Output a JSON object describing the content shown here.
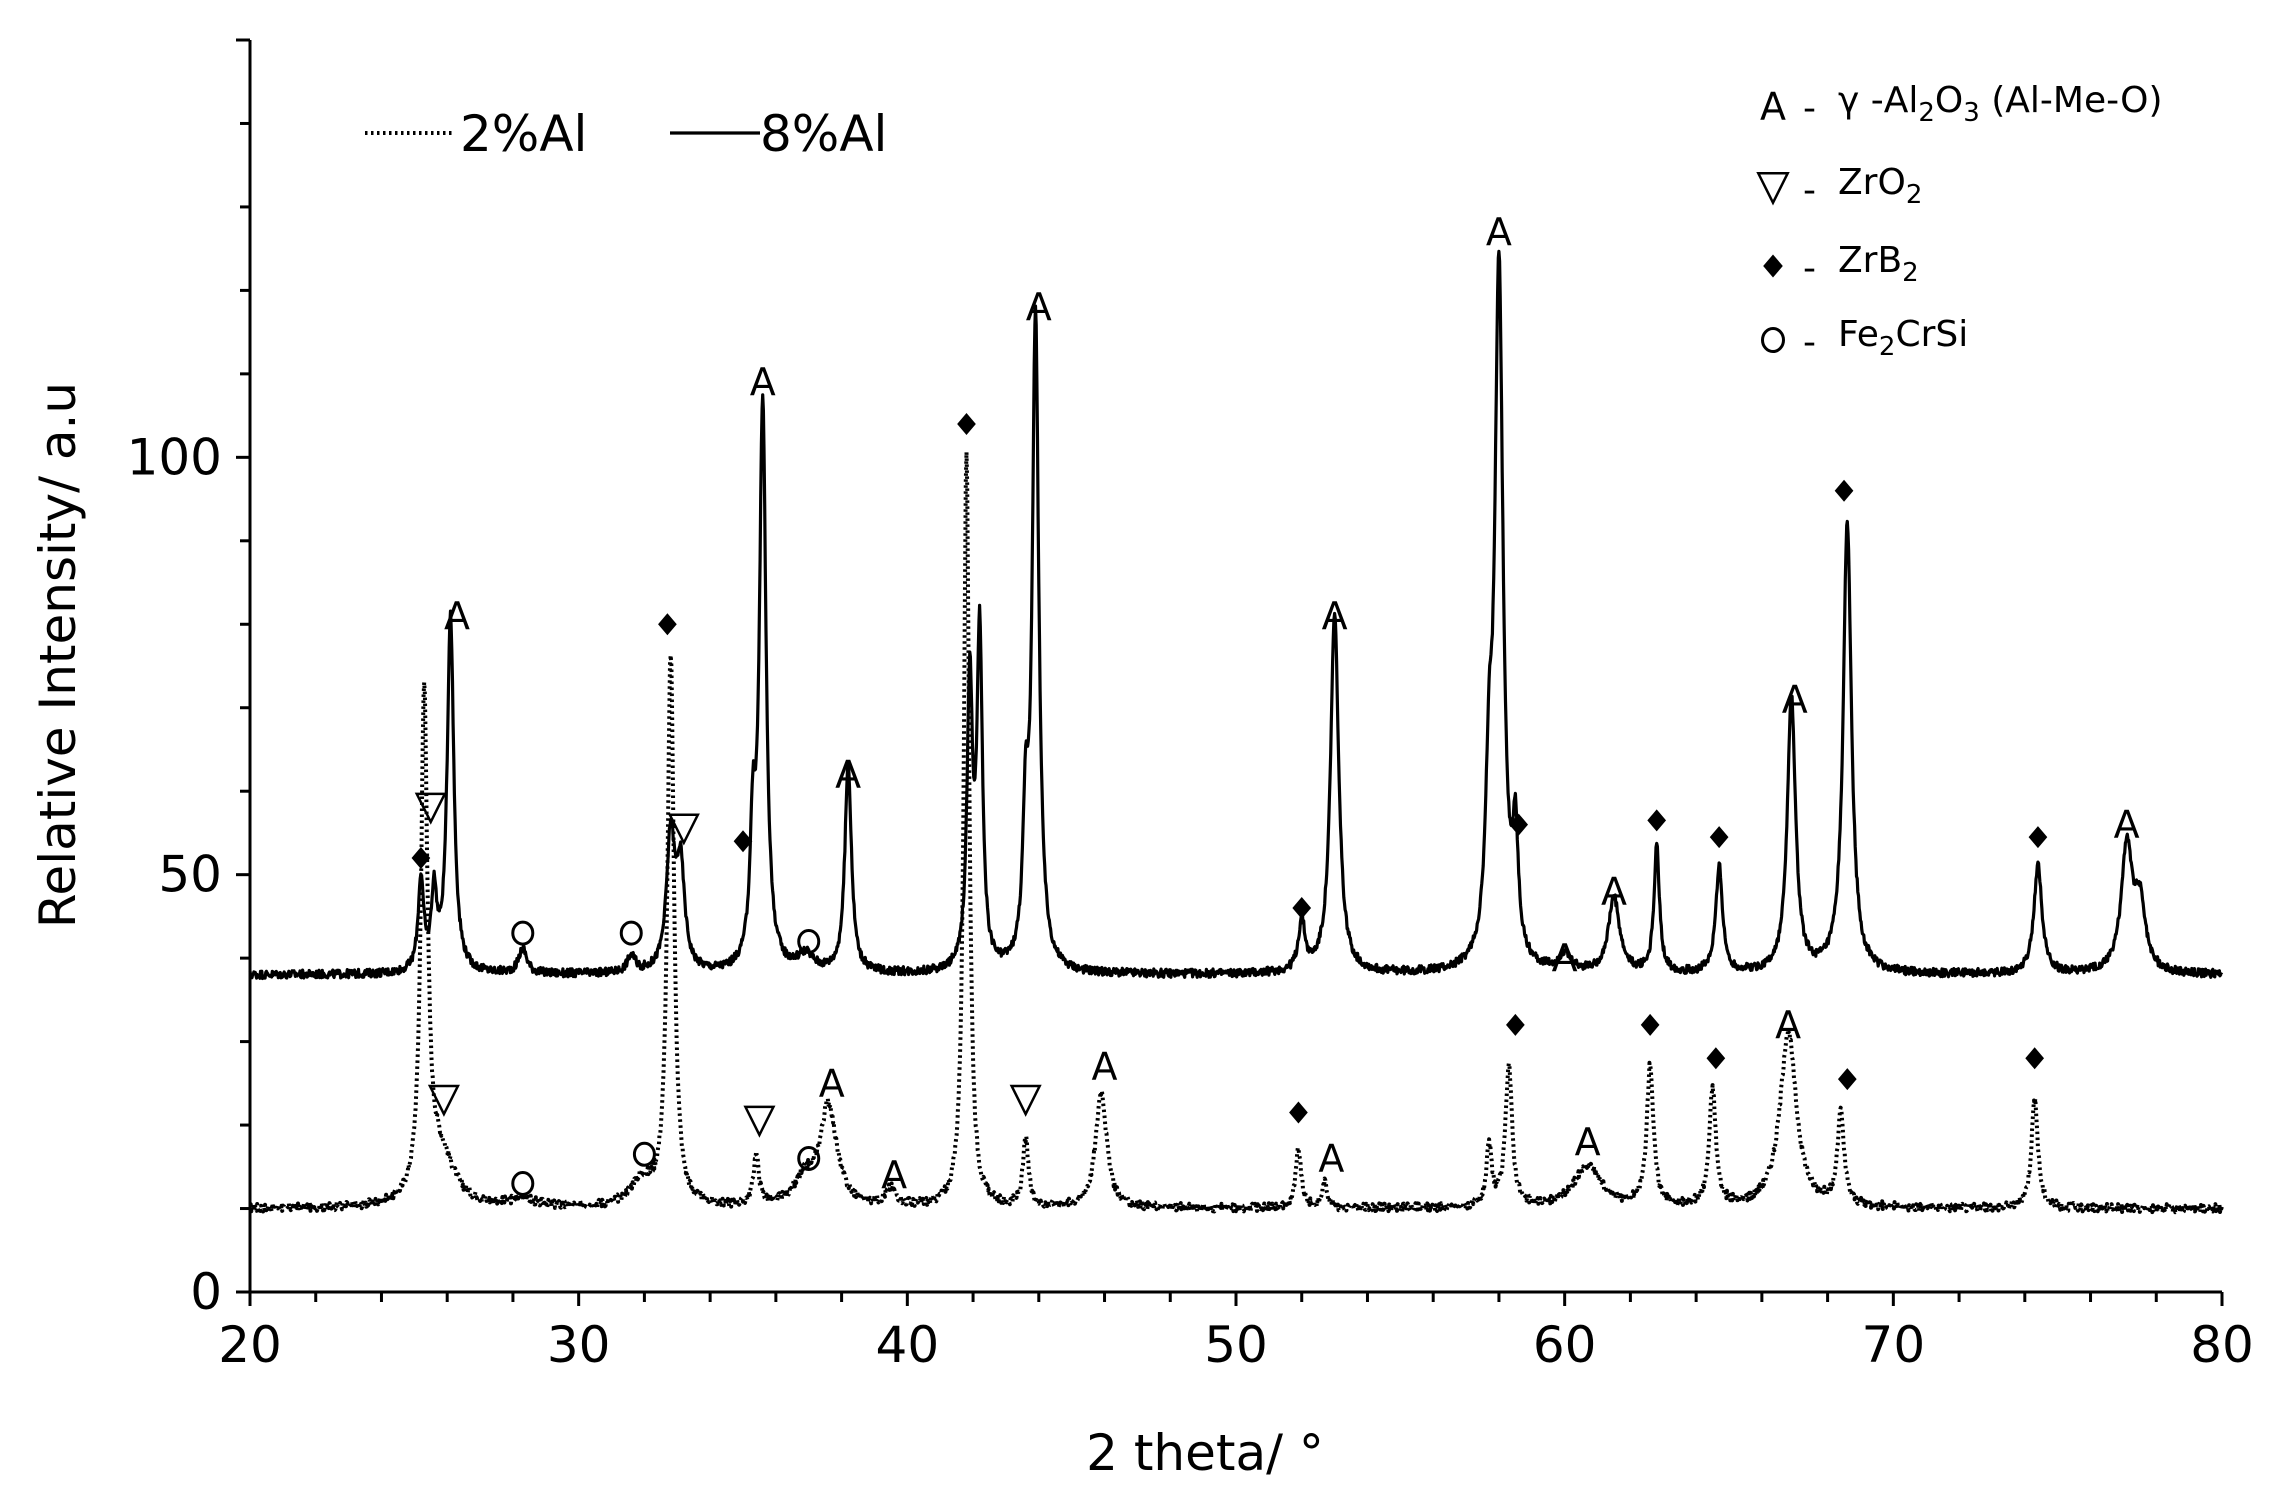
{
  "chart_data": {
    "type": "line",
    "xlabel": "2  theta/ °",
    "ylabel": "Relative Intensity/ a.u",
    "xlim": [
      20,
      80
    ],
    "ylim": [
      0,
      150
    ],
    "x_ticks": [
      20,
      30,
      40,
      50,
      60,
      70,
      80
    ],
    "y_ticks": [
      0,
      50,
      100
    ],
    "grid": false,
    "legend": {
      "placement": "top-left"
    },
    "series": [
      {
        "name": "2%Al",
        "style": "dotted",
        "baseline": 10,
        "peaks": [
          {
            "x": 25.3,
            "y": 60,
            "w": 0.12
          },
          {
            "x": 25.8,
            "y": 6,
            "w": 0.5
          },
          {
            "x": 28.3,
            "y": 1,
            "w": 0.4
          },
          {
            "x": 31.9,
            "y": 3,
            "w": 0.4
          },
          {
            "x": 32.8,
            "y": 66,
            "w": 0.12
          },
          {
            "x": 35.4,
            "y": 6,
            "w": 0.1
          },
          {
            "x": 36.9,
            "y": 3,
            "w": 0.4
          },
          {
            "x": 37.6,
            "y": 12,
            "w": 0.3
          },
          {
            "x": 39.5,
            "y": 2,
            "w": 0.2
          },
          {
            "x": 41.8,
            "y": 90,
            "w": 0.1
          },
          {
            "x": 43.6,
            "y": 8,
            "w": 0.1
          },
          {
            "x": 45.9,
            "y": 14,
            "w": 0.2
          },
          {
            "x": 51.9,
            "y": 7,
            "w": 0.1
          },
          {
            "x": 52.7,
            "y": 3,
            "w": 0.1
          },
          {
            "x": 57.7,
            "y": 7,
            "w": 0.1
          },
          {
            "x": 58.3,
            "y": 17,
            "w": 0.12
          },
          {
            "x": 60.7,
            "y": 5,
            "w": 0.5
          },
          {
            "x": 62.6,
            "y": 17,
            "w": 0.12
          },
          {
            "x": 64.5,
            "y": 14,
            "w": 0.12
          },
          {
            "x": 66.8,
            "y": 21,
            "w": 0.3
          },
          {
            "x": 68.4,
            "y": 11,
            "w": 0.12
          },
          {
            "x": 74.3,
            "y": 13,
            "w": 0.12
          }
        ]
      },
      {
        "name": "8%Al",
        "style": "solid",
        "baseline": 38,
        "peaks": [
          {
            "x": 25.2,
            "y": 11,
            "w": 0.1
          },
          {
            "x": 25.6,
            "y": 9,
            "w": 0.1
          },
          {
            "x": 26.1,
            "y": 43,
            "w": 0.12
          },
          {
            "x": 28.3,
            "y": 3,
            "w": 0.15
          },
          {
            "x": 31.6,
            "y": 2,
            "w": 0.15
          },
          {
            "x": 32.8,
            "y": 16,
            "w": 0.15
          },
          {
            "x": 33.1,
            "y": 12,
            "w": 0.15
          },
          {
            "x": 35.3,
            "y": 15,
            "w": 0.1
          },
          {
            "x": 35.6,
            "y": 68,
            "w": 0.12
          },
          {
            "x": 36.9,
            "y": 2,
            "w": 0.3
          },
          {
            "x": 38.2,
            "y": 25,
            "w": 0.12
          },
          {
            "x": 41.9,
            "y": 34,
            "w": 0.1
          },
          {
            "x": 42.2,
            "y": 40,
            "w": 0.1
          },
          {
            "x": 43.6,
            "y": 16,
            "w": 0.1
          },
          {
            "x": 43.9,
            "y": 78,
            "w": 0.12
          },
          {
            "x": 52.0,
            "y": 6,
            "w": 0.12
          },
          {
            "x": 53.0,
            "y": 43,
            "w": 0.15
          },
          {
            "x": 57.7,
            "y": 18,
            "w": 0.12
          },
          {
            "x": 58.0,
            "y": 84,
            "w": 0.15
          },
          {
            "x": 58.5,
            "y": 14,
            "w": 0.1
          },
          {
            "x": 60.0,
            "y": 2,
            "w": 0.2
          },
          {
            "x": 61.5,
            "y": 9,
            "w": 0.2
          },
          {
            "x": 62.8,
            "y": 15,
            "w": 0.1
          },
          {
            "x": 64.7,
            "y": 13,
            "w": 0.12
          },
          {
            "x": 66.9,
            "y": 33,
            "w": 0.15
          },
          {
            "x": 68.6,
            "y": 54,
            "w": 0.15
          },
          {
            "x": 74.4,
            "y": 13,
            "w": 0.15
          },
          {
            "x": 77.1,
            "y": 15,
            "w": 0.2
          },
          {
            "x": 77.5,
            "y": 8,
            "w": 0.2
          }
        ]
      }
    ],
    "annotations": [
      {
        "symbol": "A",
        "x": 26.3,
        "y": 81
      },
      {
        "symbol": "A",
        "x": 35.6,
        "y": 109
      },
      {
        "symbol": "A",
        "x": 38.2,
        "y": 62
      },
      {
        "symbol": "A",
        "x": 44.0,
        "y": 118
      },
      {
        "symbol": "A",
        "x": 53.0,
        "y": 81
      },
      {
        "symbol": "A",
        "x": 58.0,
        "y": 127
      },
      {
        "symbol": "A",
        "x": 60.0,
        "y": 40
      },
      {
        "symbol": "A",
        "x": 61.5,
        "y": 48
      },
      {
        "symbol": "A",
        "x": 67.0,
        "y": 71
      },
      {
        "symbol": "A",
        "x": 77.1,
        "y": 56
      },
      {
        "symbol": "A",
        "x": 37.7,
        "y": 25
      },
      {
        "symbol": "A",
        "x": 39.6,
        "y": 14
      },
      {
        "symbol": "A",
        "x": 46.0,
        "y": 27
      },
      {
        "symbol": "A",
        "x": 52.9,
        "y": 16
      },
      {
        "symbol": "A",
        "x": 60.7,
        "y": 18
      },
      {
        "symbol": "A",
        "x": 66.8,
        "y": 32
      },
      {
        "symbol": "triangle",
        "x": 25.5,
        "y": 58
      },
      {
        "symbol": "triangle",
        "x": 33.2,
        "y": 55.5
      },
      {
        "symbol": "triangle",
        "x": 25.9,
        "y": 23
      },
      {
        "symbol": "triangle",
        "x": 35.5,
        "y": 20.5
      },
      {
        "symbol": "triangle",
        "x": 43.6,
        "y": 23
      },
      {
        "symbol": "diamond",
        "x": 25.2,
        "y": 52
      },
      {
        "symbol": "diamond",
        "x": 32.7,
        "y": 80
      },
      {
        "symbol": "diamond",
        "x": 35.0,
        "y": 54
      },
      {
        "symbol": "diamond",
        "x": 41.8,
        "y": 104
      },
      {
        "symbol": "diamond",
        "x": 52.0,
        "y": 46
      },
      {
        "symbol": "diamond",
        "x": 58.6,
        "y": 56
      },
      {
        "symbol": "diamond",
        "x": 62.8,
        "y": 56.5
      },
      {
        "symbol": "diamond",
        "x": 64.7,
        "y": 54.5
      },
      {
        "symbol": "diamond",
        "x": 68.5,
        "y": 96
      },
      {
        "symbol": "diamond",
        "x": 74.4,
        "y": 54.5
      },
      {
        "symbol": "diamond",
        "x": 51.9,
        "y": 21.5
      },
      {
        "symbol": "diamond",
        "x": 58.5,
        "y": 32
      },
      {
        "symbol": "diamond",
        "x": 62.6,
        "y": 32
      },
      {
        "symbol": "diamond",
        "x": 64.6,
        "y": 28
      },
      {
        "symbol": "diamond",
        "x": 68.6,
        "y": 25.5
      },
      {
        "symbol": "diamond",
        "x": 74.3,
        "y": 28
      },
      {
        "symbol": "circle",
        "x": 28.3,
        "y": 43
      },
      {
        "symbol": "circle",
        "x": 31.6,
        "y": 43
      },
      {
        "symbol": "circle",
        "x": 37.0,
        "y": 42
      },
      {
        "symbol": "circle",
        "x": 28.3,
        "y": 13
      },
      {
        "symbol": "circle",
        "x": 32.0,
        "y": 16.5
      },
      {
        "symbol": "circle",
        "x": 37.0,
        "y": 16
      }
    ],
    "key": [
      {
        "symbol": "A",
        "dash": "-",
        "pre": "γ -Al",
        "s1": "2",
        "mid": "O",
        "s2": "3",
        "post": " (Al-Me-O)"
      },
      {
        "symbol": "triangle",
        "dash": "-",
        "pre": "ZrO",
        "s1": "2",
        "mid": "",
        "s2": "",
        "post": ""
      },
      {
        "symbol": "diamond",
        "dash": "-",
        "pre": "ZrB",
        "s1": "2",
        "mid": "",
        "s2": "",
        "post": ""
      },
      {
        "symbol": "circle",
        "dash": "-",
        "pre": "Fe",
        "s1": "2",
        "mid": "CrSi",
        "s2": "",
        "post": ""
      }
    ]
  }
}
